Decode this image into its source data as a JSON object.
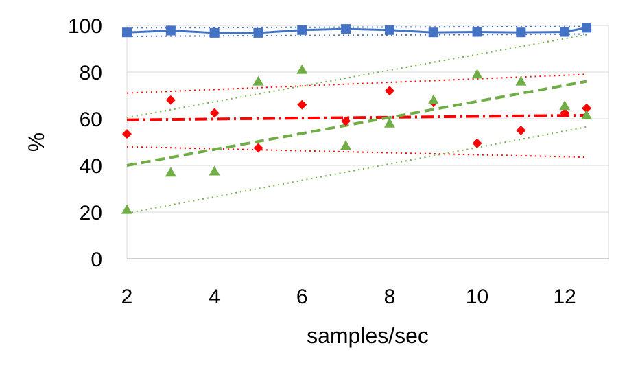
{
  "chart_data": {
    "type": "scatter",
    "xlabel": "samples/sec",
    "ylabel": "%",
    "xlim": [
      2,
      13
    ],
    "ylim": [
      0,
      100
    ],
    "x_ticks": [
      2,
      4,
      6,
      8,
      10,
      12
    ],
    "y_ticks": [
      0,
      20,
      40,
      60,
      80,
      100
    ],
    "grid": "horizontal",
    "legend": "none",
    "series": [
      {
        "marker": "square",
        "color": "#4472C4",
        "line": "solid",
        "x": [
          2,
          3,
          4,
          5,
          6,
          7,
          8,
          9,
          10,
          11,
          12,
          12.5
        ],
        "y": [
          97,
          97.8,
          96.8,
          96.8,
          98,
          98.5,
          98,
          97,
          97.2,
          97,
          97.2,
          99
        ]
      },
      {
        "marker": "diamond",
        "color": "#FF0000",
        "x": [
          2,
          3,
          4,
          5,
          6,
          7,
          8,
          9,
          10,
          11,
          12,
          12.5
        ],
        "y": [
          53.5,
          68,
          62.5,
          47.5,
          66,
          59,
          72,
          67,
          49.5,
          55,
          62.5,
          64.5
        ]
      },
      {
        "marker": "triangle",
        "color": "#70AD47",
        "x": [
          2,
          3,
          4,
          5,
          6,
          7,
          8,
          9,
          10,
          11,
          12,
          12.5
        ],
        "y": [
          21,
          37,
          37.5,
          76,
          81,
          48.5,
          58,
          68,
          79,
          76,
          65.5,
          61.5
        ]
      }
    ],
    "trend_lines": [
      {
        "color": "#FF0000",
        "style": "dash-dot",
        "x": [
          2,
          12.5
        ],
        "y": [
          59.5,
          61.5
        ]
      },
      {
        "color": "#FF0000",
        "style": "dotted",
        "x": [
          2,
          12.5
        ],
        "y": [
          71,
          79
        ]
      },
      {
        "color": "#FF0000",
        "style": "dotted",
        "x": [
          2,
          12.5
        ],
        "y": [
          48,
          43.5
        ]
      },
      {
        "color": "#70AD47",
        "style": "dashed",
        "x": [
          2,
          12.5
        ],
        "y": [
          40,
          76
        ]
      },
      {
        "color": "#70AD47",
        "style": "dotted",
        "x": [
          2,
          12.5
        ],
        "y": [
          60.5,
          96
        ]
      },
      {
        "color": "#70AD47",
        "style": "dotted",
        "x": [
          2,
          12.5
        ],
        "y": [
          19.5,
          56.5
        ]
      },
      {
        "color": "#4472C4",
        "style": "dotted",
        "x": [
          2,
          12.5
        ],
        "y": [
          99,
          99.5
        ]
      },
      {
        "color": "#4472C4",
        "style": "dotted",
        "x": [
          2,
          12.5
        ],
        "y": [
          95.3,
          96.3
        ]
      }
    ]
  }
}
